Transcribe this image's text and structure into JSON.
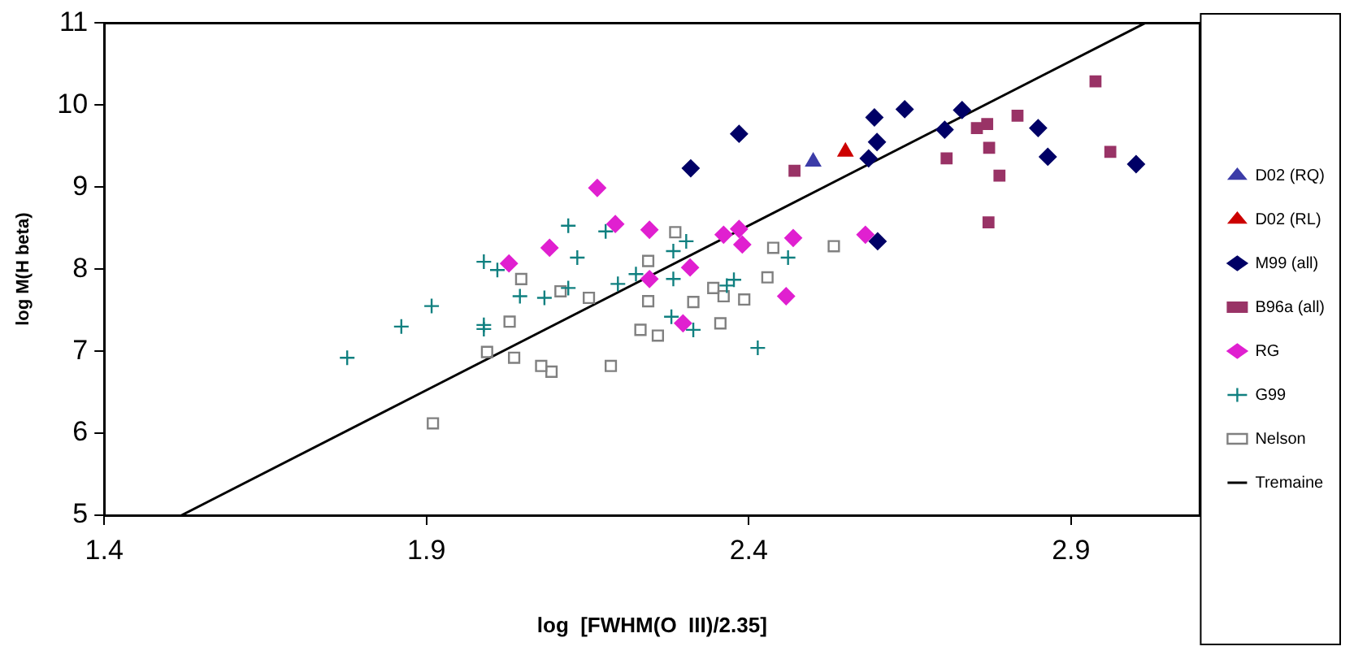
{
  "chart_data": {
    "type": "scatter",
    "xlabel": "log  [FWHM(O  III)/2.35]",
    "ylabel": "log M(H beta)",
    "xlim": [
      1.4,
      3.1
    ],
    "xticks": [
      {
        "value": 1.4,
        "label": "1.4"
      },
      {
        "value": 1.9,
        "label": "1.9"
      },
      {
        "value": 2.4,
        "label": "2.4"
      },
      {
        "value": 2.9,
        "label": "2.9"
      }
    ],
    "ylim": [
      5,
      11
    ],
    "yticks": [
      5,
      6,
      7,
      8,
      9,
      10,
      11
    ],
    "legend": "right",
    "series": [
      {
        "name": "D02 (RQ)",
        "color": "#3c3ca8",
        "marker": "triangle",
        "x": [
          2.5
        ],
        "values": [
          9.31
        ]
      },
      {
        "name": "D02 (RL)",
        "color": "#cc0000",
        "marker": "triangle",
        "x": [
          2.55
        ],
        "values": [
          9.43
        ]
      },
      {
        "name": "M99 (all)",
        "color": "#000066",
        "marker": "diamond",
        "x": [
          2.31,
          2.385,
          2.595,
          2.642,
          2.731,
          2.704,
          2.599,
          2.586,
          2.849,
          2.864,
          3.001,
          2.6
        ],
        "values": [
          9.23,
          9.65,
          9.85,
          9.95,
          9.94,
          9.7,
          9.55,
          9.35,
          9.72,
          9.37,
          9.28,
          8.34
        ]
      },
      {
        "name": "B96a (all)",
        "color": "#993366",
        "marker": "square",
        "x": [
          2.938,
          2.754,
          2.77,
          2.817,
          2.773,
          2.707,
          2.789,
          2.961,
          2.772,
          2.471
        ],
        "values": [
          10.29,
          9.72,
          9.77,
          9.87,
          9.48,
          9.35,
          9.14,
          9.43,
          8.57,
          9.2
        ]
      },
      {
        "name": "RG",
        "color": "#e020d0",
        "marker": "diamond",
        "x": [
          2.165,
          2.193,
          2.091,
          2.028,
          2.246,
          2.246,
          2.298,
          2.361,
          2.385,
          2.39,
          2.469,
          2.581,
          2.458,
          2.309
        ],
        "values": [
          8.99,
          8.55,
          8.26,
          8.07,
          8.48,
          7.88,
          7.34,
          8.42,
          8.49,
          8.3,
          8.38,
          8.42,
          7.67,
          8.02
        ]
      },
      {
        "name": "G99",
        "color": "#108080",
        "marker": "cross",
        "x": [
          1.777,
          1.861,
          1.908,
          1.989,
          1.989,
          1.989,
          2.01,
          2.045,
          2.083,
          2.12,
          2.12,
          2.134,
          2.178,
          2.197,
          2.225,
          2.283,
          2.283,
          2.28,
          2.303,
          2.461,
          2.377,
          2.366,
          2.314,
          2.414
        ],
        "values": [
          6.92,
          7.3,
          7.55,
          7.32,
          7.27,
          8.09,
          7.99,
          7.67,
          7.65,
          7.77,
          8.53,
          8.14,
          8.46,
          7.82,
          7.94,
          8.22,
          7.88,
          7.42,
          8.34,
          8.14,
          7.87,
          7.8,
          7.26,
          7.04
        ]
      },
      {
        "name": "Nelson",
        "color": "#808080",
        "marker": "square_open",
        "x": [
          1.91,
          1.994,
          2.036,
          2.078,
          2.094,
          2.186,
          2.029,
          2.047,
          2.108,
          2.152,
          2.244,
          2.244,
          2.232,
          2.259,
          2.286,
          2.438,
          2.532,
          2.429,
          2.345,
          2.361,
          2.393,
          2.314,
          2.356
        ],
        "values": [
          6.12,
          6.99,
          6.92,
          6.82,
          6.75,
          6.82,
          7.36,
          7.88,
          7.73,
          7.65,
          8.1,
          7.61,
          7.26,
          7.19,
          8.45,
          8.26,
          8.28,
          7.9,
          7.77,
          7.67,
          7.63,
          7.6,
          7.34
        ]
      },
      {
        "name": "Tremaine",
        "color": "#000000",
        "type": "line",
        "marker": "none",
        "line_style": "solid",
        "x": [
          1.52,
          3.015
        ],
        "values": [
          5,
          11
        ]
      }
    ]
  }
}
